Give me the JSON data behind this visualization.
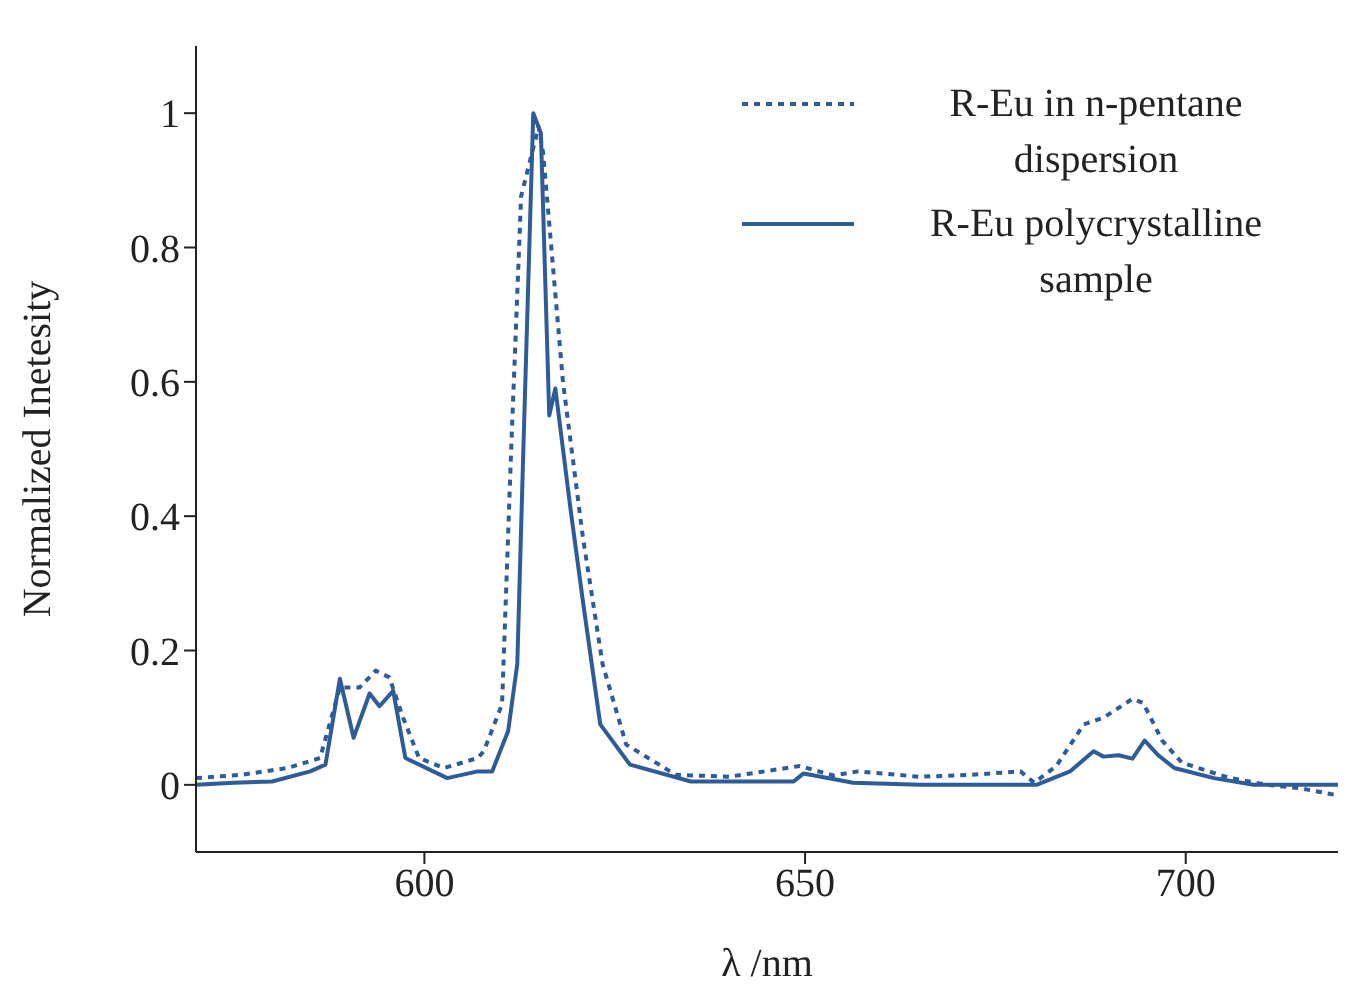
{
  "chart_data": {
    "type": "line",
    "xlabel": "λ /nm",
    "ylabel": "Normalized Inetesity",
    "xlim": [
      570,
      720
    ],
    "ylim": [
      -0.1,
      1.1
    ],
    "xticks": [
      600,
      650,
      700
    ],
    "yticks": [
      0,
      0.2,
      0.4,
      0.6,
      0.8,
      1
    ],
    "legend": "top right",
    "marker": "none",
    "series": [
      {
        "name": "R-Eu in n-pentane dispersion",
        "color": "#2e5c99",
        "line_style": "dotted",
        "x": [
          570,
          576,
          582,
          586.3,
          588.9,
          591.5,
          593.6,
          595.4,
          597.2,
          599.3,
          602.6,
          607,
          607.8,
          610.2,
          611.4,
          612.7,
          615,
          615.6,
          618.2,
          620.8,
          623.4,
          626.5,
          633,
          640,
          649.3,
          653.7,
          657,
          665,
          672,
          678.3,
          680.1,
          683,
          686.6,
          689.2,
          693,
          694.4,
          696.9,
          699.5,
          705.5,
          710.7,
          715,
          719.2,
          720
        ],
        "values": [
          0.01,
          0.015,
          0.025,
          0.04,
          0.145,
          0.145,
          0.17,
          0.16,
          0.1,
          0.04,
          0.025,
          0.04,
          0.05,
          0.12,
          0.5,
          0.876,
          0.98,
          0.94,
          0.6,
          0.37,
          0.18,
          0.06,
          0.015,
          0.012,
          0.028,
          0.014,
          0.02,
          0.012,
          0.015,
          0.02,
          0.003,
          0.028,
          0.09,
          0.1,
          0.128,
          0.122,
          0.066,
          0.033,
          0.011,
          0,
          -0.005,
          -0.014,
          -0.015
        ]
      },
      {
        "name": "R-Eu polycrystalline sample",
        "color": "#2e5c99",
        "line_style": "solid",
        "x": [
          570,
          575,
          580,
          585,
          587,
          588.9,
          590.7,
          592.8,
          594.1,
          595.9,
          597.5,
          603,
          607,
          608.9,
          611,
          612.2,
          613,
          614.3,
          615.3,
          616.4,
          617.2,
          619.2,
          620.8,
          623.1,
          627,
          635,
          648.5,
          649.8,
          656.3,
          665,
          672,
          680.4,
          684.8,
          687.9,
          689.2,
          691.2,
          693,
          694.6,
          696.4,
          698.5,
          703.7,
          708.9,
          720
        ],
        "values": [
          0,
          0.003,
          0.005,
          0.02,
          0.03,
          0.158,
          0.07,
          0.136,
          0.117,
          0.14,
          0.04,
          0.01,
          0.02,
          0.02,
          0.08,
          0.18,
          0.5,
          1,
          0.97,
          0.55,
          0.59,
          0.41,
          0.275,
          0.09,
          0.03,
          0.005,
          0.005,
          0.017,
          0.003,
          0,
          0,
          0,
          0.02,
          0.05,
          0.042,
          0.044,
          0.039,
          0.066,
          0.044,
          0.025,
          0.01,
          0,
          0
        ]
      }
    ]
  }
}
